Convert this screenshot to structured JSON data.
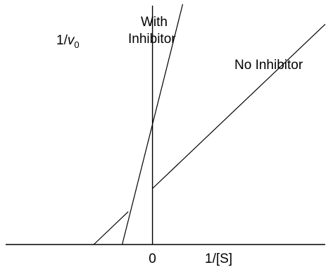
{
  "chart_data": {
    "type": "line",
    "title": "",
    "xlabel": "1/[S]",
    "ylabel_prefix": "1/",
    "ylabel_var": "v",
    "ylabel_sub": "0",
    "xtick_labels": [
      "0"
    ],
    "xlim": [
      -0.85,
      1.0
    ],
    "ylim": [
      0,
      1.0
    ],
    "grid": false,
    "series": [
      {
        "name": "With Inhibitor",
        "label_lines": [
          "With",
          "Inhibitor"
        ],
        "x": [
          -0.175,
          0.175
        ],
        "y": [
          0,
          1.0
        ]
      },
      {
        "name": "No Inhibitor",
        "x": [
          -0.34,
          -0.14,
          0.0,
          1.0
        ],
        "y": [
          0,
          0.137,
          0.233,
          0.917
        ],
        "gap_after_index": 1
      }
    ]
  }
}
